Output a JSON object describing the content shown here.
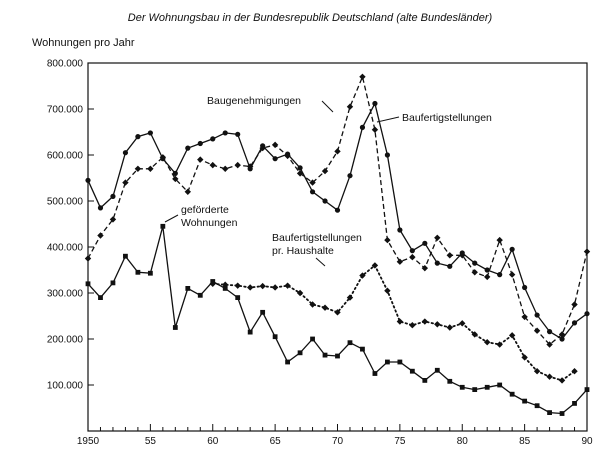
{
  "chart_data": {
    "type": "line",
    "title": "Der Wohnungsbau in der Bundesrepublik Deutschland (alte Bundesländer)",
    "ylabel": "Wohnungen pro Jahr",
    "xlabel": "",
    "xlim": [
      1950,
      1990
    ],
    "ylim": [
      0,
      800000
    ],
    "x_ticks": [
      {
        "value": 1950,
        "label": "1950"
      },
      {
        "value": 1955,
        "label": "55"
      },
      {
        "value": 1960,
        "label": "60"
      },
      {
        "value": 1965,
        "label": "65"
      },
      {
        "value": 1970,
        "label": "70"
      },
      {
        "value": 1975,
        "label": "75"
      },
      {
        "value": 1980,
        "label": "80"
      },
      {
        "value": 1985,
        "label": "85"
      },
      {
        "value": 1990,
        "label": "90"
      }
    ],
    "y_ticks": [
      {
        "value": 100000,
        "label": "100.000"
      },
      {
        "value": 200000,
        "label": "200.000"
      },
      {
        "value": 300000,
        "label": "300.000"
      },
      {
        "value": 400000,
        "label": "400.000"
      },
      {
        "value": 500000,
        "label": "500.000"
      },
      {
        "value": 600000,
        "label": "600.000"
      },
      {
        "value": 700000,
        "label": "700.000"
      },
      {
        "value": 800000,
        "label": "800.000"
      }
    ],
    "grid": false,
    "legend": "none",
    "series": [
      {
        "name": "Baugenehmigungen",
        "style": "dashed",
        "marker": "diamond",
        "x": [
          1950,
          1951,
          1952,
          1953,
          1954,
          1955,
          1956,
          1957,
          1958,
          1959,
          1960,
          1961,
          1962,
          1963,
          1964,
          1965,
          1966,
          1967,
          1968,
          1969,
          1970,
          1971,
          1972,
          1973,
          1974,
          1975,
          1976,
          1977,
          1978,
          1979,
          1980,
          1981,
          1982,
          1983,
          1984,
          1985,
          1986,
          1987,
          1988,
          1989,
          1990
        ],
        "values": [
          375000,
          425000,
          460000,
          540000,
          570000,
          570000,
          595000,
          548000,
          520000,
          590000,
          578000,
          570000,
          578000,
          575000,
          615000,
          622000,
          598000,
          560000,
          540000,
          565000,
          608000,
          705000,
          770000,
          655000,
          415000,
          368000,
          378000,
          354000,
          420000,
          382000,
          382000,
          345000,
          335000,
          415000,
          340000,
          248000,
          218000,
          188000,
          210000,
          275000,
          390000
        ]
      },
      {
        "name": "Baufertigstellungen",
        "style": "solid",
        "marker": "circle",
        "x": [
          1950,
          1951,
          1952,
          1953,
          1954,
          1955,
          1956,
          1957,
          1958,
          1959,
          1960,
          1961,
          1962,
          1963,
          1964,
          1965,
          1966,
          1967,
          1968,
          1969,
          1970,
          1971,
          1972,
          1973,
          1974,
          1975,
          1976,
          1977,
          1978,
          1979,
          1980,
          1981,
          1982,
          1983,
          1984,
          1985,
          1986,
          1987,
          1988,
          1989,
          1990
        ],
        "values": [
          545000,
          485000,
          510000,
          605000,
          640000,
          648000,
          592000,
          560000,
          615000,
          625000,
          635000,
          648000,
          645000,
          570000,
          620000,
          592000,
          602000,
          572000,
          520000,
          500000,
          480000,
          555000,
          660000,
          712000,
          600000,
          437000,
          392000,
          408000,
          365000,
          358000,
          387000,
          365000,
          350000,
          340000,
          395000,
          312000,
          252000,
          216000,
          200000,
          235000,
          255000
        ]
      },
      {
        "name": "geförderte Wohnungen",
        "style": "solid",
        "marker": "square",
        "x": [
          1950,
          1951,
          1952,
          1953,
          1954,
          1955,
          1956,
          1957,
          1958,
          1959,
          1960,
          1961,
          1962,
          1963,
          1964,
          1965,
          1966,
          1967,
          1968,
          1969,
          1970,
          1971,
          1972,
          1973,
          1974,
          1975,
          1976,
          1977,
          1978,
          1979,
          1980,
          1981,
          1982,
          1983,
          1984,
          1985,
          1986,
          1987,
          1988,
          1989,
          1990
        ],
        "values": [
          320000,
          290000,
          322000,
          380000,
          345000,
          343000,
          445000,
          225000,
          310000,
          295000,
          325000,
          310000,
          290000,
          215000,
          258000,
          205000,
          150000,
          170000,
          200000,
          165000,
          163000,
          192000,
          178000,
          125000,
          150000,
          150000,
          130000,
          110000,
          132000,
          108000,
          95000,
          90000,
          95000,
          100000,
          80000,
          65000,
          55000,
          40000,
          38000,
          60000,
          90000
        ]
      },
      {
        "name": "Baufertigstellungen pr. Haushalte",
        "style": "dotted",
        "marker": "diamond",
        "x": [
          1960,
          1961,
          1962,
          1963,
          1964,
          1965,
          1966,
          1967,
          1968,
          1969,
          1970,
          1971,
          1972,
          1973,
          1974,
          1975,
          1976,
          1977,
          1978,
          1979,
          1980,
          1981,
          1982,
          1983,
          1984,
          1985,
          1986,
          1987,
          1988,
          1989
        ],
        "values": [
          320000,
          318000,
          316000,
          312000,
          315000,
          312000,
          316000,
          300000,
          275000,
          268000,
          258000,
          290000,
          338000,
          360000,
          305000,
          238000,
          230000,
          238000,
          232000,
          225000,
          234000,
          210000,
          193000,
          188000,
          208000,
          160000,
          130000,
          118000,
          110000,
          130000
        ]
      }
    ],
    "annotations": [
      {
        "text": "Baugenehmigungen",
        "series": "Baugenehmigungen",
        "x": 1972,
        "y": 680000
      },
      {
        "text": "Baufertigstellungen",
        "series": "Baufertigstellungen",
        "x": 1974,
        "y": 680000
      },
      {
        "text": "geförderte Wohnungen",
        "series": "geförderte Wohnungen",
        "x": 1956,
        "y": 445000
      },
      {
        "text": "Baufertigstellungen pr. Haushalte",
        "series": "Baufertigstellungen pr. Haushalte",
        "x": 1972,
        "y": 340000
      }
    ]
  }
}
